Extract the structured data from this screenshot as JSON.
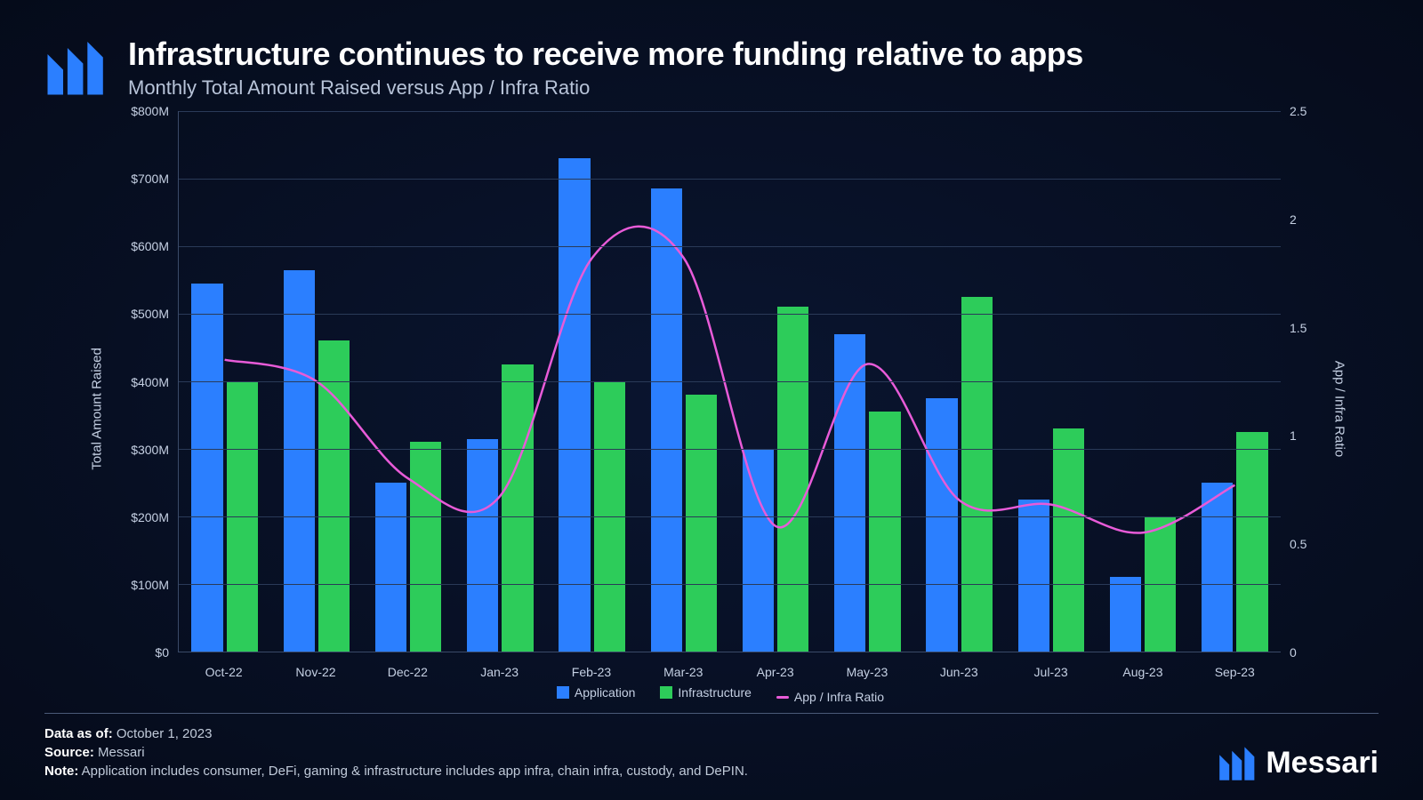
{
  "header": {
    "title": "Infrastructure continues to receive more funding relative to apps",
    "subtitle": "Monthly Total Amount Raised versus App / Infra Ratio"
  },
  "chart": {
    "type": "bar+line",
    "categories": [
      "Oct-22",
      "Nov-22",
      "Dec-22",
      "Jan-23",
      "Feb-23",
      "Mar-23",
      "Apr-23",
      "May-23",
      "Jun-23",
      "Jul-23",
      "Aug-23",
      "Sep-23"
    ],
    "series": {
      "application": {
        "label": "Application",
        "color": "#2b7fff",
        "values": [
          545,
          565,
          250,
          315,
          730,
          685,
          300,
          470,
          375,
          225,
          110,
          250
        ]
      },
      "infrastructure": {
        "label": "Infrastructure",
        "color": "#2dcc5a",
        "values": [
          400,
          460,
          310,
          425,
          400,
          380,
          510,
          355,
          525,
          330,
          200,
          325
        ]
      },
      "ratio": {
        "label": "App / Infra Ratio",
        "color": "#e85bd8",
        "values": [
          1.35,
          1.25,
          0.8,
          0.72,
          1.82,
          1.82,
          0.58,
          1.33,
          0.7,
          0.68,
          0.55,
          0.77
        ]
      }
    },
    "y_left": {
      "label": "Total Amount Raised",
      "min": 0,
      "max": 800,
      "step": 100,
      "format_prefix": "$",
      "format_suffix": "M",
      "ticks": [
        "$0",
        "$100M",
        "$200M",
        "$300M",
        "$400M",
        "$500M",
        "$600M",
        "$700M",
        "$800M"
      ]
    },
    "y_right": {
      "label": "App / Infra Ratio",
      "min": 0,
      "max": 2.5,
      "step": 0.5,
      "ticks": [
        "0",
        "0.5",
        "1",
        "1.5",
        "2",
        "2.5"
      ]
    },
    "grid_color": "#2a3a58",
    "axis_color": "#3a4a68",
    "background": "transparent",
    "tick_fontsize": 14,
    "label_fontsize": 15
  },
  "legend": {
    "items": [
      {
        "key": "application",
        "type": "square"
      },
      {
        "key": "infrastructure",
        "type": "square"
      },
      {
        "key": "ratio",
        "type": "line"
      }
    ]
  },
  "footer": {
    "data_as_of_label": "Data as of:",
    "data_as_of_value": "October 1, 2023",
    "source_label": "Source:",
    "source_value": "Messari",
    "note_label": "Note:",
    "note_value": "Application includes consumer, DeFi, gaming & infrastructure includes app infra, chain infra, custody, and DePIN.",
    "brand": "Messari"
  },
  "colors": {
    "bg_center": "#0a1530",
    "bg_edge": "#050b1a",
    "text_primary": "#ffffff",
    "text_secondary": "#c5d0e3",
    "logo_blue": "#2b7fff"
  }
}
